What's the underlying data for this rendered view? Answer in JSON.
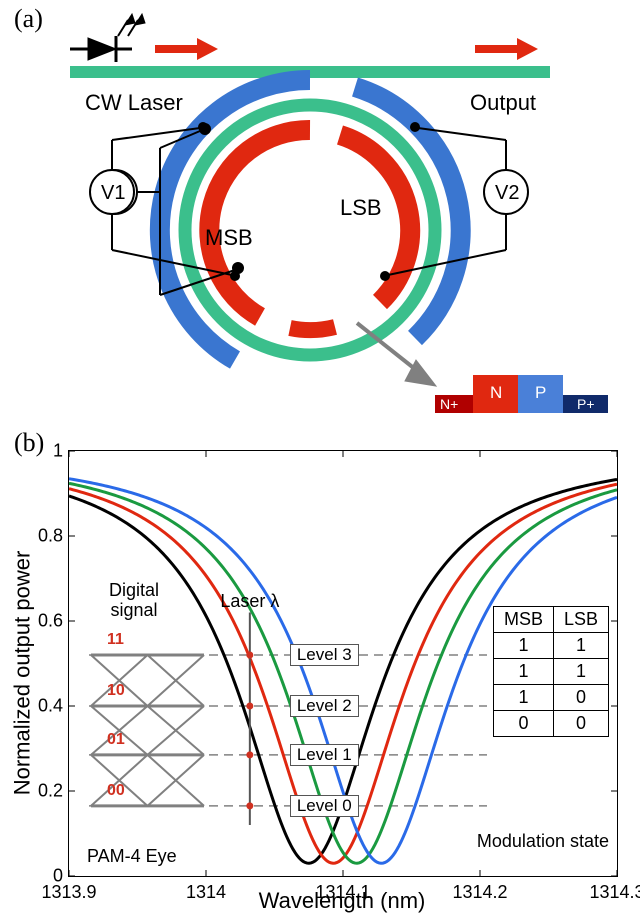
{
  "panel_a": {
    "label": "(a)",
    "cw_laser_label": "CW Laser",
    "output_label": "Output",
    "v1_label": "V1",
    "v2_label": "V2",
    "msb_label": "MSB",
    "lsb_label": "LSB",
    "junction_labels": {
      "nplus": "N+",
      "n": "N",
      "p": "P",
      "pplus": "P+"
    },
    "colors": {
      "waveguide_green": "#3bbf8c",
      "arc_red": "#e02810",
      "arc_blue": "#3a76d0",
      "arrow_red": "#e02810",
      "diode_black": "#000000",
      "wire_black": "#000000",
      "arrow_gray": "#808080",
      "n_plus_fill": "#b00000",
      "n_fill": "#e02810",
      "p_fill": "#4a80d8",
      "p_plus_fill": "#102a6a",
      "text_white": "#ffffff"
    }
  },
  "panel_b": {
    "label": "(b)",
    "x_label": "Wavelength (nm)",
    "y_label": "Normalized output power",
    "digital_signal_label": "Digital signal",
    "digital_bits": [
      "11",
      "10",
      "01",
      "00"
    ],
    "pam4_label": "PAM-4 Eye",
    "laser_label": "Laser λ",
    "modulation_state_label": "Modulation state",
    "levels": [
      "Level 3",
      "Level 2",
      "Level 1",
      "Level 0"
    ],
    "state_header": [
      "MSB",
      "LSB"
    ],
    "state_rows": [
      [
        "1",
        "1"
      ],
      [
        "1",
        "1"
      ],
      [
        "1",
        "0"
      ],
      [
        "0",
        "0"
      ]
    ],
    "chart": {
      "type": "line",
      "xlim": [
        1313.9,
        1314.3
      ],
      "ylim": [
        0,
        1
      ],
      "xticks": [
        1313.9,
        1314.0,
        1314.1,
        1314.2,
        1314.3
      ],
      "yticks": [
        0,
        0.2,
        0.4,
        0.6,
        0.8,
        1
      ],
      "line_colors": [
        "#000000",
        "#e02810",
        "#1a9a40",
        "#2a6ae8"
      ],
      "line_width": 3,
      "centers": [
        1314.075,
        1314.093,
        1314.11,
        1314.128
      ],
      "depth": 0.97,
      "hw": 0.15,
      "laser_lambda": 1314.032,
      "level_y": [
        0.52,
        0.4,
        0.285,
        0.165
      ],
      "marker_color": "#d03020",
      "marker_radius": 3.5,
      "dash_color": "#808080",
      "dash_pattern": "9,6",
      "eye_color": "#808080",
      "eye_linewidth": 3
    }
  }
}
